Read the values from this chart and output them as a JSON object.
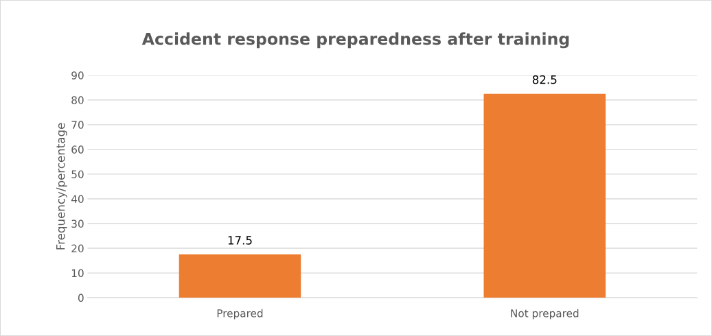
{
  "chart_data": {
    "type": "bar",
    "title": "Accident response preparedness after training",
    "ylabel": "Frequency/percentage",
    "categories": [
      "Prepared",
      "Not prepared"
    ],
    "values": [
      17.5,
      82.5
    ],
    "color": "#ed7d31",
    "ylim": [
      0,
      90
    ],
    "yticks": [
      0,
      10,
      20,
      30,
      40,
      50,
      60,
      70,
      80,
      90
    ],
    "grid": "y",
    "data_labels": true
  }
}
